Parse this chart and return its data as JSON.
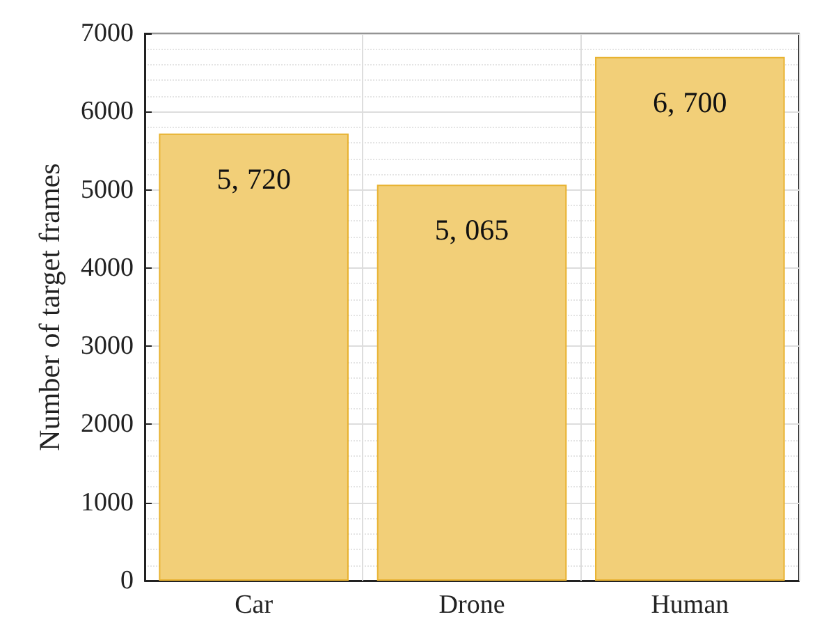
{
  "chart_data": {
    "type": "bar",
    "ylabel": "Number of target frames",
    "categories": [
      "Car",
      "Drone",
      "Human"
    ],
    "values": [
      5720,
      5065,
      6700
    ],
    "value_labels": [
      "5,720",
      "5,065",
      "6,700"
    ],
    "color": "#f2cf78",
    "ylim": [
      0,
      7000
    ],
    "yticks": [
      0,
      1000,
      2000,
      3000,
      4000,
      5000,
      6000,
      7000
    ],
    "grid": true
  }
}
